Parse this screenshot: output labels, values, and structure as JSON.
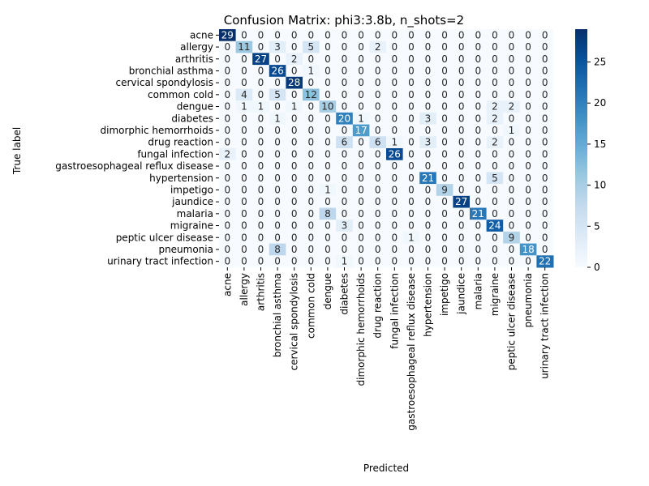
{
  "chart_data": {
    "type": "heatmap",
    "title": "Confusion Matrix: phi3:3.8b, n_shots=2",
    "xlabel": "Predicted",
    "ylabel": "True label",
    "colormap": "Blues",
    "vmin": 0,
    "vmax": 29,
    "colorbar_ticks": [
      0,
      5,
      10,
      15,
      20,
      25
    ],
    "categories": [
      "acne",
      "allergy",
      "arthritis",
      "bronchial asthma",
      "cervical spondylosis",
      "common cold",
      "dengue",
      "diabetes",
      "dimorphic hemorrhoids",
      "drug reaction",
      "fungal infection",
      "gastroesophageal reflux disease",
      "hypertension",
      "impetigo",
      "jaundice",
      "malaria",
      "migraine",
      "peptic ulcer disease",
      "pneumonia",
      "urinary tract infection"
    ],
    "matrix": [
      [
        29,
        0,
        0,
        0,
        0,
        0,
        0,
        0,
        0,
        0,
        0,
        0,
        0,
        0,
        0,
        0,
        0,
        0,
        0,
        0
      ],
      [
        0,
        11,
        0,
        3,
        0,
        5,
        0,
        0,
        0,
        2,
        0,
        0,
        0,
        0,
        0,
        0,
        0,
        0,
        0,
        0
      ],
      [
        0,
        0,
        27,
        0,
        2,
        0,
        0,
        0,
        0,
        0,
        0,
        0,
        0,
        0,
        0,
        0,
        0,
        0,
        0,
        0
      ],
      [
        0,
        0,
        0,
        26,
        0,
        1,
        0,
        0,
        0,
        0,
        0,
        0,
        0,
        0,
        0,
        0,
        0,
        0,
        0,
        0
      ],
      [
        0,
        0,
        0,
        0,
        28,
        0,
        0,
        0,
        0,
        0,
        0,
        0,
        0,
        0,
        0,
        0,
        0,
        0,
        0,
        0
      ],
      [
        0,
        4,
        0,
        5,
        0,
        12,
        0,
        0,
        0,
        0,
        0,
        0,
        0,
        0,
        0,
        0,
        0,
        0,
        0,
        0
      ],
      [
        0,
        1,
        1,
        0,
        1,
        0,
        10,
        0,
        0,
        0,
        0,
        0,
        0,
        0,
        0,
        0,
        2,
        2,
        0,
        0
      ],
      [
        0,
        0,
        0,
        1,
        0,
        0,
        0,
        20,
        1,
        0,
        0,
        0,
        3,
        0,
        0,
        0,
        2,
        0,
        0,
        0
      ],
      [
        0,
        0,
        0,
        0,
        0,
        0,
        0,
        0,
        17,
        0,
        0,
        0,
        0,
        0,
        0,
        0,
        0,
        1,
        0,
        0
      ],
      [
        0,
        0,
        0,
        0,
        0,
        0,
        0,
        6,
        0,
        6,
        1,
        0,
        3,
        0,
        0,
        0,
        2,
        0,
        0,
        0
      ],
      [
        2,
        0,
        0,
        0,
        0,
        0,
        0,
        0,
        0,
        0,
        26,
        0,
        0,
        0,
        0,
        0,
        0,
        0,
        0,
        0
      ],
      [
        0,
        0,
        0,
        0,
        0,
        0,
        0,
        0,
        0,
        0,
        0,
        0,
        0,
        0,
        0,
        0,
        0,
        0,
        0,
        0
      ],
      [
        0,
        0,
        0,
        0,
        0,
        0,
        0,
        0,
        0,
        0,
        0,
        0,
        21,
        0,
        0,
        0,
        5,
        0,
        0,
        0
      ],
      [
        0,
        0,
        0,
        0,
        0,
        0,
        1,
        0,
        0,
        0,
        0,
        0,
        0,
        9,
        0,
        0,
        0,
        0,
        0,
        0
      ],
      [
        0,
        0,
        0,
        0,
        0,
        0,
        0,
        0,
        0,
        0,
        0,
        0,
        0,
        0,
        27,
        0,
        0,
        0,
        0,
        0
      ],
      [
        0,
        0,
        0,
        0,
        0,
        0,
        8,
        0,
        0,
        0,
        0,
        0,
        0,
        0,
        0,
        21,
        0,
        0,
        0,
        0
      ],
      [
        0,
        0,
        0,
        0,
        0,
        0,
        0,
        3,
        0,
        0,
        0,
        0,
        0,
        0,
        0,
        0,
        24,
        0,
        0,
        0
      ],
      [
        0,
        0,
        0,
        0,
        0,
        0,
        0,
        0,
        0,
        0,
        0,
        1,
        0,
        0,
        0,
        0,
        0,
        9,
        0,
        0
      ],
      [
        0,
        0,
        0,
        8,
        0,
        0,
        0,
        0,
        0,
        0,
        0,
        0,
        0,
        0,
        0,
        0,
        0,
        0,
        18,
        0
      ],
      [
        0,
        0,
        0,
        0,
        0,
        0,
        0,
        1,
        0,
        0,
        0,
        0,
        0,
        0,
        0,
        0,
        0,
        0,
        0,
        22
      ]
    ]
  }
}
